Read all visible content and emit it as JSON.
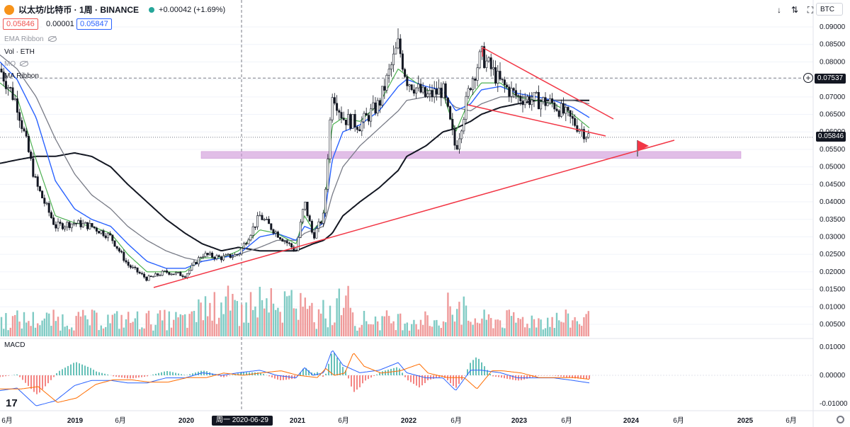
{
  "header": {
    "symbol": "以太坊/比特币 · 1周 · BINANCE",
    "change": "+0.00042 (+1.69%)",
    "sell_price": "0.05846",
    "spread": "0.00001",
    "buy_price": "0.05847"
  },
  "indicators": {
    "ema_ribbon": "EMA Ribbon",
    "volume": "Vol · ETH",
    "hidden_ind": "MO",
    "ma_ribbon": "MA Ribbon",
    "macd": "MACD"
  },
  "toolbar": {
    "down_icon": "↓",
    "up_down_icon": "⇅",
    "expand_icon": "⛶",
    "currency": "BTC"
  },
  "price_axis": {
    "labels": [
      "0.09000",
      "0.08500",
      "0.08000",
      "0.07500",
      "0.07000",
      "0.06500",
      "0.06000",
      "0.05500",
      "0.05000",
      "0.04500",
      "0.04000",
      "0.03500",
      "0.03000",
      "0.02500",
      "0.02000",
      "0.01500",
      "0.01000",
      "0.00500"
    ],
    "highlight_label": "0.07537",
    "current_label": "0.05846"
  },
  "macd_axis": {
    "labels": [
      "0.01000",
      "0.00000",
      "-0.01000"
    ]
  },
  "time_axis": {
    "labels": [
      "6月",
      "2019",
      "6月",
      "2020",
      "2021",
      "6月",
      "2022",
      "6月",
      "2023",
      "6月",
      "2024",
      "6月",
      "2025",
      "6月"
    ],
    "crosshair_date": "周一 2020-06-29"
  },
  "colors": {
    "up": "#ffffff",
    "down": "#131722",
    "ema_green": "#4caf50",
    "ema_blue": "#2962ff",
    "ma_gray": "#787b86",
    "ma_black": "#131722",
    "trend_red": "#f23645",
    "zone_purple": "#ce93d8",
    "vol_up": "#80cbc4",
    "vol_down": "#ef9a9a"
  },
  "chart_data": {
    "type": "candlestick",
    "ylim": [
      0.015,
      0.09
    ],
    "x_range": [
      "2018-05-07",
      "2025-08-31"
    ],
    "price_series": {
      "x": [
        "2018-05-07",
        "2018-07-02",
        "2018-09-03",
        "2018-11-05",
        "2019-01-07",
        "2019-03-04",
        "2019-05-06",
        "2019-07-01",
        "2019-09-02",
        "2019-11-04",
        "2020-01-06",
        "2020-03-02",
        "2020-05-04",
        "2020-06-29",
        "2020-09-07",
        "2020-11-02",
        "2021-01-04",
        "2021-02-01",
        "2021-03-01",
        "2021-04-05",
        "2021-05-03",
        "2021-06-07",
        "2021-08-02",
        "2021-10-04",
        "2021-12-06",
        "2022-01-03",
        "2022-03-07",
        "2022-05-02",
        "2022-06-13",
        "2022-08-01",
        "2022-09-05",
        "2022-11-07",
        "2023-01-02",
        "2023-03-06",
        "2023-05-01",
        "2023-07-03",
        "2023-08-28"
      ],
      "close": [
        0.078,
        0.068,
        0.045,
        0.033,
        0.034,
        0.033,
        0.03,
        0.022,
        0.018,
        0.02,
        0.019,
        0.025,
        0.024,
        0.025,
        0.036,
        0.031,
        0.026,
        0.04,
        0.03,
        0.036,
        0.072,
        0.064,
        0.062,
        0.068,
        0.085,
        0.075,
        0.07,
        0.072,
        0.055,
        0.074,
        0.082,
        0.074,
        0.07,
        0.069,
        0.068,
        0.063,
        0.0585
      ]
    },
    "ema_fast": [
      0.074,
      0.07,
      0.052,
      0.036,
      0.034,
      0.033,
      0.031,
      0.025,
      0.02,
      0.02,
      0.02,
      0.024,
      0.024,
      0.026,
      0.032,
      0.031,
      0.028,
      0.036,
      0.032,
      0.035,
      0.062,
      0.064,
      0.063,
      0.068,
      0.078,
      0.076,
      0.072,
      0.071,
      0.06,
      0.07,
      0.074,
      0.074,
      0.07,
      0.069,
      0.068,
      0.065,
      0.061
    ],
    "ema_slow": [
      0.08,
      0.075,
      0.064,
      0.046,
      0.038,
      0.035,
      0.033,
      0.028,
      0.023,
      0.021,
      0.021,
      0.023,
      0.024,
      0.025,
      0.03,
      0.031,
      0.029,
      0.033,
      0.032,
      0.034,
      0.052,
      0.06,
      0.062,
      0.066,
      0.073,
      0.075,
      0.073,
      0.072,
      0.066,
      0.068,
      0.072,
      0.073,
      0.071,
      0.07,
      0.069,
      0.067,
      0.064
    ],
    "ma_gray": [
      0.082,
      0.078,
      0.07,
      0.058,
      0.048,
      0.042,
      0.038,
      0.033,
      0.029,
      0.026,
      0.024,
      0.023,
      0.024,
      0.025,
      0.027,
      0.029,
      0.029,
      0.031,
      0.032,
      0.033,
      0.042,
      0.05,
      0.056,
      0.061,
      0.066,
      0.069,
      0.07,
      0.07,
      0.067,
      0.066,
      0.068,
      0.07,
      0.07,
      0.07,
      0.069,
      0.069,
      0.068
    ],
    "ma_black": [
      0.051,
      0.052,
      0.053,
      0.053,
      0.054,
      0.053,
      0.05,
      0.045,
      0.04,
      0.035,
      0.031,
      0.028,
      0.026,
      0.027,
      0.026,
      0.026,
      0.026,
      0.027,
      0.028,
      0.029,
      0.031,
      0.036,
      0.04,
      0.044,
      0.049,
      0.053,
      0.056,
      0.06,
      0.061,
      0.063,
      0.065,
      0.067,
      0.068,
      0.069,
      0.069,
      0.069,
      0.069
    ],
    "annotations": {
      "support_zone": [
        0.0528,
        0.054
      ],
      "horizontal_line": 0.07537,
      "current_price": 0.05846
    }
  }
}
